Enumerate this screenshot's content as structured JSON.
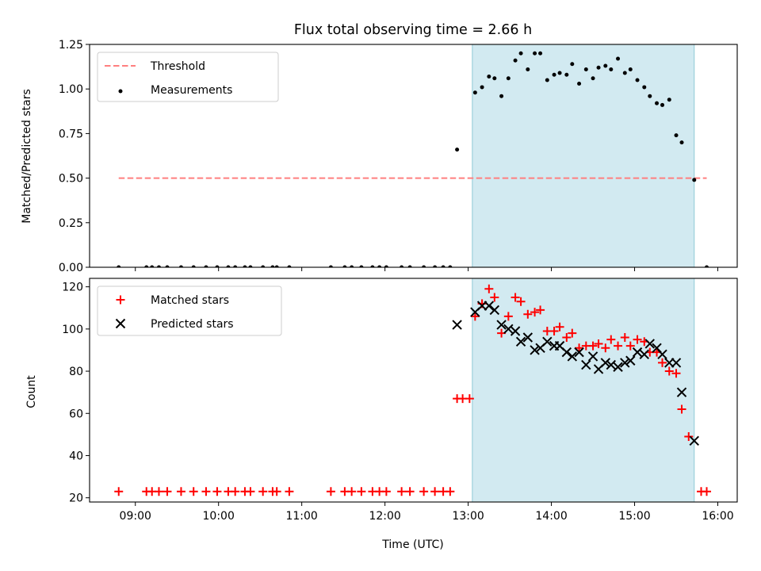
{
  "figure": {
    "title": "Flux total observing time = 2.66 h",
    "xlabel": "Time (UTC)"
  },
  "chart_data": [
    {
      "type": "scatter",
      "ylabel": "Matched/Predicted stars",
      "xlim": [
        "08:27",
        "16:14"
      ],
      "ylim": [
        0,
        1.25
      ],
      "yticks": [
        "0.00",
        "0.25",
        "0.50",
        "0.75",
        "1.00",
        "1.25"
      ],
      "xticks": [
        "09:00",
        "10:00",
        "11:00",
        "12:00",
        "13:00",
        "14:00",
        "15:00",
        "16:00"
      ],
      "xticklabels_shown": false,
      "shaded_span": {
        "from": "13:03",
        "to": "15:43",
        "color": "#add8e6"
      },
      "legend": {
        "position": "top-left",
        "entries": [
          {
            "label": "Threshold",
            "marker": "dashed-line",
            "color": "#ff7f7f"
          },
          {
            "label": "Measurements",
            "marker": "dot",
            "color": "#000000"
          }
        ]
      },
      "threshold": {
        "from": "08:48",
        "to": "15:52",
        "value": 0.5,
        "color": "#ff7f7f"
      },
      "series": [
        {
          "name": "Measurements",
          "color": "#000000",
          "points": [
            [
              "08:48",
              0
            ],
            [
              "09:08",
              0
            ],
            [
              "09:12",
              0
            ],
            [
              "09:17",
              0
            ],
            [
              "09:23",
              0
            ],
            [
              "09:33",
              0
            ],
            [
              "09:42",
              0
            ],
            [
              "09:51",
              0
            ],
            [
              "09:59",
              0
            ],
            [
              "10:07",
              0
            ],
            [
              "10:12",
              0
            ],
            [
              "10:19",
              0
            ],
            [
              "10:23",
              0
            ],
            [
              "10:32",
              0
            ],
            [
              "10:39",
              0
            ],
            [
              "10:42",
              0
            ],
            [
              "10:51",
              0
            ],
            [
              "11:21",
              0
            ],
            [
              "11:31",
              0
            ],
            [
              "11:36",
              0
            ],
            [
              "11:43",
              0
            ],
            [
              "11:51",
              0
            ],
            [
              "11:56",
              0
            ],
            [
              "12:01",
              0
            ],
            [
              "12:12",
              0
            ],
            [
              "12:18",
              0
            ],
            [
              "12:28",
              0
            ],
            [
              "12:36",
              0
            ],
            [
              "12:42",
              0
            ],
            [
              "12:47",
              0
            ],
            [
              "12:52",
              0.66
            ],
            [
              "13:05",
              0.98
            ],
            [
              "13:10",
              1.01
            ],
            [
              "13:15",
              1.07
            ],
            [
              "13:19",
              1.06
            ],
            [
              "13:24",
              0.96
            ],
            [
              "13:29",
              1.06
            ],
            [
              "13:34",
              1.16
            ],
            [
              "13:38",
              1.2
            ],
            [
              "13:43",
              1.11
            ],
            [
              "13:48",
              1.2
            ],
            [
              "13:52",
              1.2
            ],
            [
              "13:57",
              1.05
            ],
            [
              "14:02",
              1.08
            ],
            [
              "14:06",
              1.09
            ],
            [
              "14:11",
              1.08
            ],
            [
              "14:15",
              1.14
            ],
            [
              "14:20",
              1.03
            ],
            [
              "14:25",
              1.11
            ],
            [
              "14:30",
              1.06
            ],
            [
              "14:34",
              1.12
            ],
            [
              "14:39",
              1.13
            ],
            [
              "14:43",
              1.11
            ],
            [
              "14:48",
              1.17
            ],
            [
              "14:53",
              1.09
            ],
            [
              "14:57",
              1.11
            ],
            [
              "15:02",
              1.05
            ],
            [
              "15:07",
              1.01
            ],
            [
              "15:11",
              0.96
            ],
            [
              "15:16",
              0.92
            ],
            [
              "15:20",
              0.91
            ],
            [
              "15:25",
              0.94
            ],
            [
              "15:30",
              0.74
            ],
            [
              "15:34",
              0.7
            ],
            [
              "15:43",
              0.49
            ],
            [
              "15:52",
              0
            ]
          ]
        }
      ]
    },
    {
      "type": "scatter",
      "ylabel": "Count",
      "xlim": [
        "08:27",
        "16:14"
      ],
      "ylim": [
        18,
        124
      ],
      "yticks": [
        "20",
        "40",
        "60",
        "80",
        "100",
        "120"
      ],
      "xticks": [
        "09:00",
        "10:00",
        "11:00",
        "12:00",
        "13:00",
        "14:00",
        "15:00",
        "16:00"
      ],
      "shaded_span": {
        "from": "13:03",
        "to": "15:43",
        "color": "#add8e6"
      },
      "legend": {
        "position": "top-left",
        "entries": [
          {
            "label": "Matched stars",
            "marker": "plus",
            "color": "#ff0000"
          },
          {
            "label": "Predicted stars",
            "marker": "cross",
            "color": "#000000"
          }
        ]
      },
      "series": [
        {
          "name": "Matched stars",
          "marker": "plus",
          "color": "#ff0000",
          "points": [
            [
              "08:48",
              23
            ],
            [
              "09:08",
              23
            ],
            [
              "09:12",
              23
            ],
            [
              "09:17",
              23
            ],
            [
              "09:23",
              23
            ],
            [
              "09:33",
              23
            ],
            [
              "09:42",
              23
            ],
            [
              "09:51",
              23
            ],
            [
              "09:59",
              23
            ],
            [
              "10:07",
              23
            ],
            [
              "10:12",
              23
            ],
            [
              "10:19",
              23
            ],
            [
              "10:23",
              23
            ],
            [
              "10:32",
              23
            ],
            [
              "10:39",
              23
            ],
            [
              "10:42",
              23
            ],
            [
              "10:51",
              23
            ],
            [
              "11:21",
              23
            ],
            [
              "11:31",
              23
            ],
            [
              "11:36",
              23
            ],
            [
              "11:43",
              23
            ],
            [
              "11:51",
              23
            ],
            [
              "11:56",
              23
            ],
            [
              "12:01",
              23
            ],
            [
              "12:12",
              23
            ],
            [
              "12:18",
              23
            ],
            [
              "12:28",
              23
            ],
            [
              "12:36",
              23
            ],
            [
              "12:42",
              23
            ],
            [
              "12:47",
              23
            ],
            [
              "12:52",
              67
            ],
            [
              "12:56",
              67
            ],
            [
              "13:01",
              67
            ],
            [
              "13:05",
              106
            ],
            [
              "13:10",
              112
            ],
            [
              "13:15",
              119
            ],
            [
              "13:19",
              115
            ],
            [
              "13:24",
              98
            ],
            [
              "13:29",
              106
            ],
            [
              "13:34",
              115
            ],
            [
              "13:38",
              113
            ],
            [
              "13:43",
              107
            ],
            [
              "13:48",
              108
            ],
            [
              "13:52",
              109
            ],
            [
              "13:57",
              99
            ],
            [
              "14:02",
              99
            ],
            [
              "14:06",
              101
            ],
            [
              "14:11",
              96
            ],
            [
              "14:15",
              98
            ],
            [
              "14:20",
              91
            ],
            [
              "14:25",
              92
            ],
            [
              "14:30",
              92
            ],
            [
              "14:34",
              93
            ],
            [
              "14:39",
              91
            ],
            [
              "14:43",
              95
            ],
            [
              "14:48",
              92
            ],
            [
              "14:53",
              96
            ],
            [
              "14:57",
              92
            ],
            [
              "15:02",
              95
            ],
            [
              "15:07",
              94
            ],
            [
              "15:11",
              89
            ],
            [
              "15:16",
              89
            ],
            [
              "15:20",
              84
            ],
            [
              "15:25",
              80
            ],
            [
              "15:30",
              79
            ],
            [
              "15:34",
              62
            ],
            [
              "15:39",
              49
            ],
            [
              "15:48",
              23
            ],
            [
              "15:52",
              23
            ]
          ]
        },
        {
          "name": "Predicted stars",
          "marker": "cross",
          "color": "#000000",
          "points": [
            [
              "12:52",
              102
            ],
            [
              "13:05",
              108
            ],
            [
              "13:10",
              111
            ],
            [
              "13:15",
              111
            ],
            [
              "13:19",
              109
            ],
            [
              "13:24",
              102
            ],
            [
              "13:29",
              100
            ],
            [
              "13:34",
              99
            ],
            [
              "13:38",
              94
            ],
            [
              "13:43",
              96
            ],
            [
              "13:48",
              90
            ],
            [
              "13:52",
              91
            ],
            [
              "13:57",
              94
            ],
            [
              "14:02",
              92
            ],
            [
              "14:06",
              92
            ],
            [
              "14:11",
              89
            ],
            [
              "14:15",
              87
            ],
            [
              "14:20",
              89
            ],
            [
              "14:25",
              83
            ],
            [
              "14:30",
              87
            ],
            [
              "14:34",
              81
            ],
            [
              "14:39",
              84
            ],
            [
              "14:43",
              83
            ],
            [
              "14:48",
              82
            ],
            [
              "14:53",
              84
            ],
            [
              "14:57",
              85
            ],
            [
              "15:02",
              89
            ],
            [
              "15:07",
              88
            ],
            [
              "15:11",
              93
            ],
            [
              "15:16",
              91
            ],
            [
              "15:20",
              88
            ],
            [
              "15:25",
              84
            ],
            [
              "15:30",
              84
            ],
            [
              "15:34",
              70
            ],
            [
              "15:43",
              47
            ]
          ]
        }
      ]
    }
  ]
}
